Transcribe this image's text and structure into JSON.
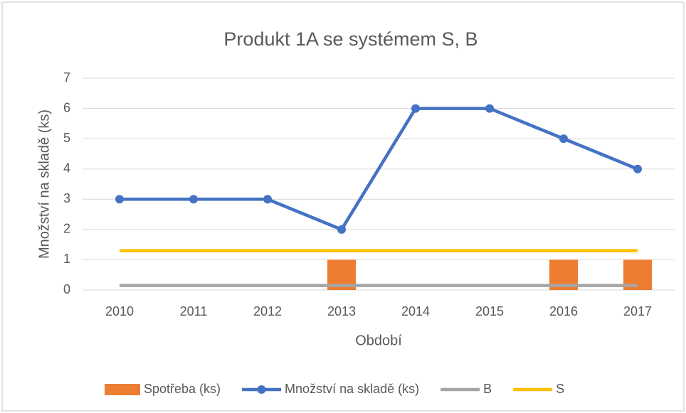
{
  "chart_data": {
    "type": "bar",
    "title": "Produkt 1A se systémem S, B",
    "x_label": "Období",
    "y_label": "Množství na skladě (ks)",
    "categories": [
      "2010",
      "2011",
      "2012",
      "2013",
      "2014",
      "2015",
      "2016",
      "2017"
    ],
    "series": [
      {
        "name": "Spotřeba (ks)",
        "type": "bar",
        "color": "#ed7d31",
        "values": [
          0,
          0,
          0,
          1,
          0,
          0,
          1,
          1
        ]
      },
      {
        "name": "Množství na skladě (ks)",
        "type": "line",
        "markers": true,
        "color": "#4472c4",
        "values": [
          3,
          3,
          3,
          2,
          6,
          6,
          5,
          4
        ]
      },
      {
        "name": "B",
        "type": "line",
        "markers": false,
        "color": "#a5a5a5",
        "values": [
          0.15,
          0.15,
          0.15,
          0.15,
          0.15,
          0.15,
          0.15,
          0.15
        ]
      },
      {
        "name": "S",
        "type": "line",
        "markers": false,
        "color": "#ffc000",
        "values": [
          1.3,
          1.3,
          1.3,
          1.3,
          1.3,
          1.3,
          1.3,
          1.3
        ]
      }
    ],
    "ylim": [
      0,
      7
    ],
    "yticks": [
      0,
      1,
      2,
      3,
      4,
      5,
      6,
      7
    ],
    "grid": true,
    "legend": "bottom"
  }
}
